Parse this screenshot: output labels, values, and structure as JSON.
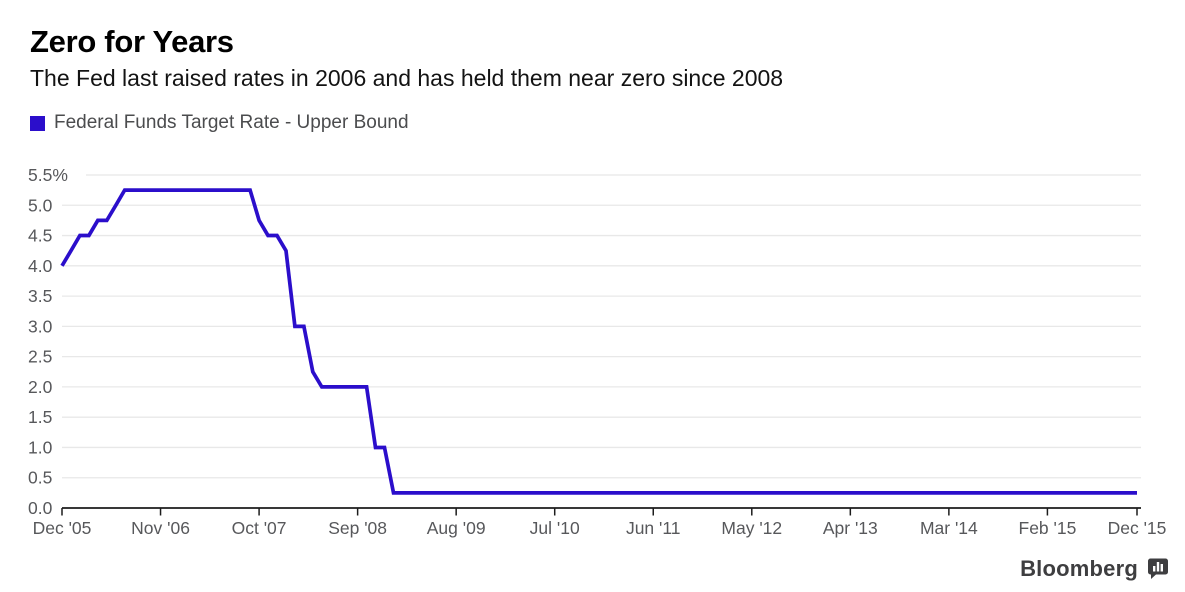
{
  "header": {
    "title": "Zero for Years",
    "subtitle": "The Fed last raised rates in 2006 and has held them near zero since 2008"
  },
  "legend": {
    "label": "Federal Funds Target Rate - Upper Bound",
    "swatch_color": "#2b0ecb"
  },
  "branding": {
    "logo_text": "Bloomberg",
    "logo_icon": "bar-chart-bubble-icon",
    "logo_color": "#3e3e40"
  },
  "colors": {
    "line": "#2b0ecb",
    "grid": "#e8e8e8",
    "axis": "#1c1c1c",
    "tick_label": "#57585b"
  },
  "chart_data": {
    "type": "line",
    "title": "Zero for Years",
    "subtitle": "The Fed last raised rates in 2006 and has held them near zero since 2008",
    "xlabel": "",
    "ylabel": "Federal Funds Target Rate - Upper Bound (%)",
    "x_unit": "month",
    "x_start": "2005-12",
    "x_end": "2015-12",
    "x_interval_months": 1,
    "point_count": 121,
    "ylim": [
      0,
      5.5
    ],
    "grid": "horizontal",
    "legend_position": "top-left",
    "yticks": [
      {
        "value": 0.0,
        "label": "0.0"
      },
      {
        "value": 0.5,
        "label": "0.5"
      },
      {
        "value": 1.0,
        "label": "1.0"
      },
      {
        "value": 1.5,
        "label": "1.5"
      },
      {
        "value": 2.0,
        "label": "2.0"
      },
      {
        "value": 2.5,
        "label": "2.5"
      },
      {
        "value": 3.0,
        "label": "3.0"
      },
      {
        "value": 3.5,
        "label": "3.5"
      },
      {
        "value": 4.0,
        "label": "4.0"
      },
      {
        "value": 4.5,
        "label": "4.5"
      },
      {
        "value": 5.0,
        "label": "5.0"
      },
      {
        "value": 5.5,
        "label": "5.5%"
      }
    ],
    "xticks": [
      {
        "month": 0,
        "label": "Dec '05"
      },
      {
        "month": 11,
        "label": "Nov '06"
      },
      {
        "month": 22,
        "label": "Oct '07"
      },
      {
        "month": 33,
        "label": "Sep '08"
      },
      {
        "month": 44,
        "label": "Aug '09"
      },
      {
        "month": 55,
        "label": "Jul '10"
      },
      {
        "month": 66,
        "label": "Jun '11"
      },
      {
        "month": 77,
        "label": "May '12"
      },
      {
        "month": 88,
        "label": "Apr '13"
      },
      {
        "month": 99,
        "label": "Mar '14"
      },
      {
        "month": 110,
        "label": "Feb '15"
      },
      {
        "month": 120,
        "label": "Dec '15"
      }
    ],
    "series": [
      {
        "name": "Federal Funds Target Rate - Upper Bound",
        "color": "#2b0ecb",
        "values": [
          4,
          4.25,
          4.5,
          4.5,
          4.75,
          4.75,
          5,
          5.25,
          5.25,
          5.25,
          5.25,
          5.25,
          5.25,
          5.25,
          5.25,
          5.25,
          5.25,
          5.25,
          5.25,
          5.25,
          5.25,
          5.25,
          4.75,
          4.5,
          4.5,
          4.25,
          3,
          3,
          2.25,
          2,
          2,
          2,
          2,
          2,
          2,
          1,
          1,
          0.25,
          0.25,
          0.25,
          0.25,
          0.25,
          0.25,
          0.25,
          0.25,
          0.25,
          0.25,
          0.25,
          0.25,
          0.25,
          0.25,
          0.25,
          0.25,
          0.25,
          0.25,
          0.25,
          0.25,
          0.25,
          0.25,
          0.25,
          0.25,
          0.25,
          0.25,
          0.25,
          0.25,
          0.25,
          0.25,
          0.25,
          0.25,
          0.25,
          0.25,
          0.25,
          0.25,
          0.25,
          0.25,
          0.25,
          0.25,
          0.25,
          0.25,
          0.25,
          0.25,
          0.25,
          0.25,
          0.25,
          0.25,
          0.25,
          0.25,
          0.25,
          0.25,
          0.25,
          0.25,
          0.25,
          0.25,
          0.25,
          0.25,
          0.25,
          0.25,
          0.25,
          0.25,
          0.25,
          0.25,
          0.25,
          0.25,
          0.25,
          0.25,
          0.25,
          0.25,
          0.25,
          0.25,
          0.25,
          0.25,
          0.25,
          0.25,
          0.25,
          0.25,
          0.25,
          0.25,
          0.25,
          0.25,
          0.25,
          0.25
        ]
      }
    ]
  }
}
